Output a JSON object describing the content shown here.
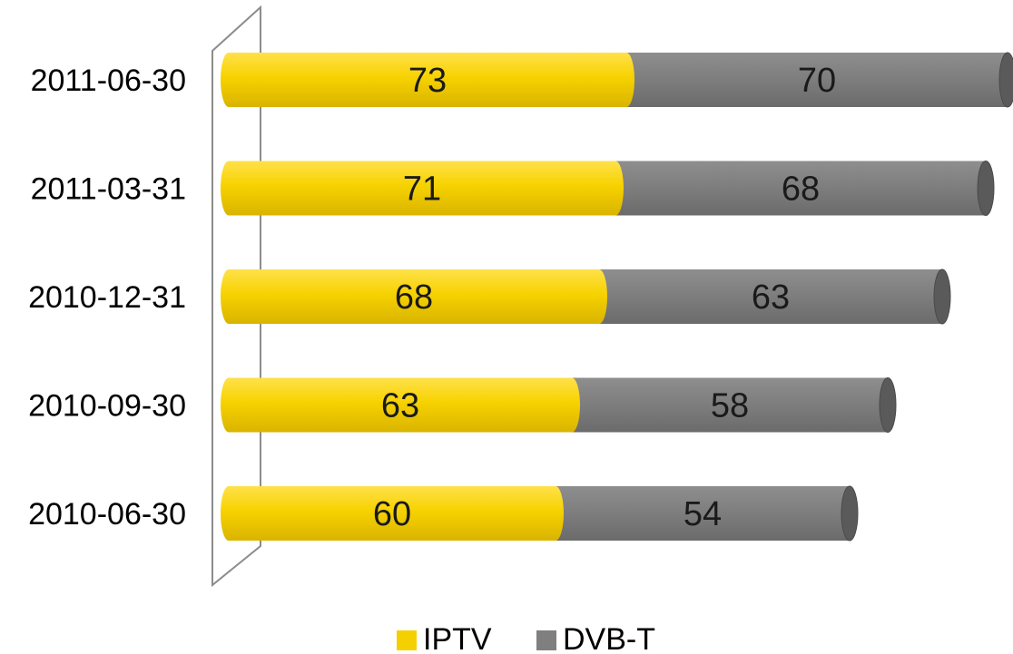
{
  "chart_data": {
    "type": "bar",
    "orientation": "horizontal",
    "stacked": true,
    "style": "3d-cylinder",
    "categories": [
      "2011-06-30",
      "2011-03-31",
      "2010-12-31",
      "2010-09-30",
      "2010-06-30"
    ],
    "series": [
      {
        "name": "IPTV",
        "values": [
          73,
          71,
          68,
          63,
          60
        ],
        "color": "#f5d000"
      },
      {
        "name": "DVB-T",
        "values": [
          70,
          68,
          63,
          58,
          54
        ],
        "color": "#7f7f7f"
      }
    ],
    "data_labels": true,
    "legend_position": "bottom",
    "grid": false,
    "xlim": [
      0,
      145
    ]
  }
}
